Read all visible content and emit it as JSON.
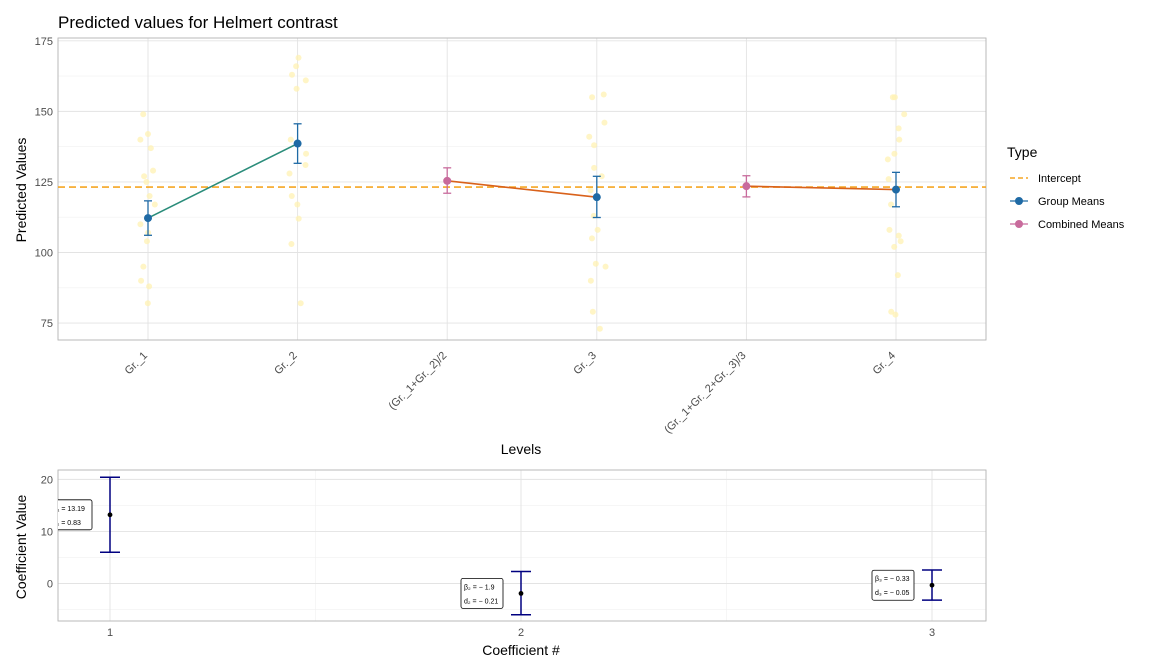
{
  "chart_data": [
    {
      "type": "line",
      "title": "Predicted values for Helmert contrast",
      "xlabel": "Levels",
      "ylabel": "Predicted Values",
      "categories": [
        "Gr._1",
        "Gr._2",
        "(Gr._1+Gr._2)/2",
        "Gr._3",
        "(Gr._1+Gr._2+Gr._3)/3",
        "Gr._4"
      ],
      "ylim": [
        69,
        176
      ],
      "yticks": [
        75,
        100,
        125,
        150,
        175
      ],
      "intercept": 123.2,
      "legend": {
        "title": "Type",
        "position": "right",
        "entries": [
          "Intercept",
          "Group Means",
          "Combined Means"
        ]
      },
      "series": [
        {
          "name": "Group Means",
          "color": "#1f6aa5",
          "points": [
            {
              "x": "Gr._1",
              "y": 112.2,
              "lo": 106.1,
              "hi": 118.3
            },
            {
              "x": "Gr._2",
              "y": 138.6,
              "lo": 131.6,
              "hi": 145.6
            },
            {
              "x": "Gr._3",
              "y": 119.6,
              "lo": 112.4,
              "hi": 127.0
            },
            {
              "x": "Gr._4",
              "y": 122.3,
              "lo": 116.2,
              "hi": 128.4
            }
          ]
        },
        {
          "name": "Combined Means",
          "color": "#c86b9c",
          "points": [
            {
              "x": "(Gr._1+Gr._2)/2",
              "y": 125.4,
              "lo": 121.0,
              "hi": 130.0
            },
            {
              "x": "(Gr._1+Gr._2+Gr._3)/3",
              "y": 123.5,
              "lo": 119.7,
              "hi": 127.2
            }
          ]
        }
      ],
      "connectors": [
        {
          "from": "Gr._1",
          "to": "Gr._2",
          "color": "#2a8c7a"
        },
        {
          "from": "(Gr._1+Gr._2)/2",
          "to": "Gr._3",
          "color": "#d9621b"
        },
        {
          "from": "(Gr._1+Gr._2+Gr._3)/3",
          "to": "Gr._4",
          "color": "#d9621b"
        }
      ],
      "jitter_color": "#fff2b3",
      "jitter": [
        {
          "x": "Gr._1",
          "y": [
            82,
            88,
            90,
            95,
            104,
            107,
            110,
            117,
            120,
            125,
            127,
            129,
            137,
            140,
            142,
            149
          ]
        },
        {
          "x": "Gr._2",
          "y": [
            82,
            103,
            112,
            117,
            120,
            128,
            131,
            135,
            140,
            158,
            161,
            163,
            166,
            169
          ]
        },
        {
          "x": "Gr._3",
          "y": [
            73,
            79,
            90,
            95,
            96,
            105,
            108,
            113,
            122,
            127,
            130,
            138,
            141,
            146,
            155,
            156
          ]
        },
        {
          "x": "Gr._4",
          "y": [
            78,
            79,
            92,
            102,
            104,
            106,
            108,
            117,
            122,
            126,
            133,
            135,
            140,
            144,
            149,
            155,
            155
          ]
        }
      ]
    },
    {
      "type": "scatter",
      "xlabel": "Coefficient #",
      "ylabel": "Coefficient Value",
      "categories": [
        "1",
        "2",
        "3"
      ],
      "ylim": [
        -7.2,
        21.8
      ],
      "yticks": [
        0,
        10,
        20
      ],
      "color": "#000080",
      "points": [
        {
          "x": "1",
          "y": 13.19,
          "lo": 6.0,
          "hi": 20.4,
          "beta": "13.19",
          "d": "0.83"
        },
        {
          "x": "2",
          "y": -1.9,
          "lo": -6.0,
          "hi": 2.3,
          "beta": "− 1.9",
          "d": "− 0.21"
        },
        {
          "x": "3",
          "y": -0.33,
          "lo": -3.2,
          "hi": 2.6,
          "beta": "− 0.33",
          "d": "− 0.05"
        }
      ]
    }
  ]
}
